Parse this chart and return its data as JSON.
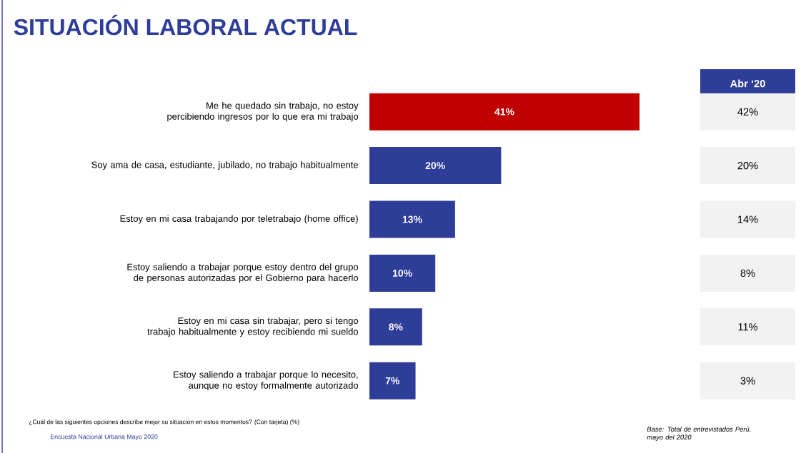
{
  "chart_data": [
    {
      "type": "bar",
      "orientation": "horizontal",
      "title": "SITUACIÓN LABORAL ACTUAL",
      "categories": [
        "Me he quedado sin trabajo,  no estoy percibiendo ingresos por lo que era mi trabajo",
        "Soy ama de casa, estudiante, jubilado, no trabajo habitualmente",
        "Estoy en mi casa trabajando por teletrabajo (home office)",
        "Estoy saliendo a trabajar porque estoy dentro del grupo de personas autorizadas por el Gobierno para hacerlo",
        "Estoy en mi casa sin trabajar, pero si tengo trabajo habitualmente y estoy recibiendo mi sueldo",
        "Estoy saliendo a trabajar porque lo necesito, aunque no estoy formalmente autorizado"
      ],
      "values": [
        41,
        20,
        13,
        10,
        8,
        7
      ],
      "colors": [
        "#c00000",
        "#2e3d98",
        "#2e3d98",
        "#2e3d98",
        "#2e3d98",
        "#2e3d98"
      ],
      "value_labels": [
        "41%",
        "20%",
        "13%",
        "10%",
        "8%",
        "7%"
      ],
      "tick_labels": "y",
      "annotations": [
        "¿Cuál de las siguientes opciones describe mejor su situación en estos momentos? (Con tarjeta) (%)",
        "Encuesta Nacional Urbana Mayo 2020",
        "Base: Total de entrevistados Perú, mayo del 2020"
      ]
    },
    {
      "type": "other",
      "title": "Abr ‘20",
      "annotations": [
        "42%",
        "20%",
        "14%",
        "8%",
        "11%",
        "3%"
      ]
    }
  ]
}
